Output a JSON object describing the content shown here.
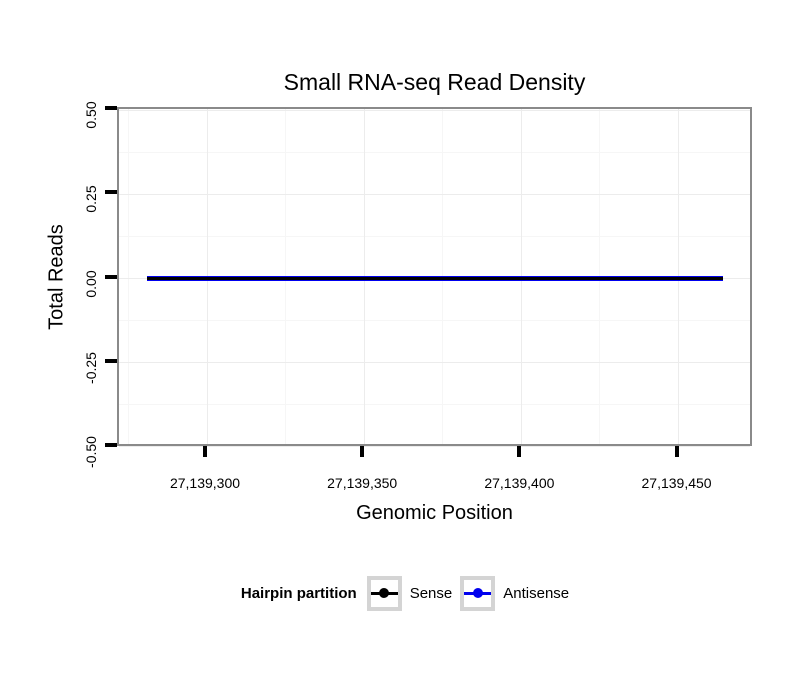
{
  "colors": {
    "background": "#ffffff",
    "panel_border": "#8a8a8a",
    "tick": "#000000",
    "text": "#000000",
    "legend_key_border": "#d4d4d4"
  },
  "chart_data": {
    "type": "line",
    "title": "Small RNA-seq Read Density",
    "xlabel": "Genomic Position",
    "ylabel": "Total Reads",
    "xlim": [
      27139272,
      27139474
    ],
    "ylim": [
      -0.5035,
      0.5035
    ],
    "x_ticks": [
      {
        "value": 27139300,
        "label": "27,139,300"
      },
      {
        "value": 27139350,
        "label": "27,139,350"
      },
      {
        "value": 27139400,
        "label": "27,139,400"
      },
      {
        "value": 27139450,
        "label": "27,139,450"
      }
    ],
    "y_ticks": [
      {
        "value": 0.5,
        "label": "0.50"
      },
      {
        "value": 0.25,
        "label": "0.25"
      },
      {
        "value": 0,
        "label": "0.00"
      },
      {
        "value": -0.25,
        "label": "-0.25"
      },
      {
        "value": -0.5,
        "label": "-0.50"
      }
    ],
    "grid": {
      "major": "#ececec",
      "minor": "#f6f6f6",
      "shown": true
    },
    "series": [
      {
        "name": "Sense",
        "color": "#000000",
        "y": 0,
        "x_start": 27139281,
        "x_end": 27139464
      },
      {
        "name": "Antisense",
        "color": "#0000EE",
        "y": 0,
        "x_start": 27139281,
        "x_end": 27139464
      }
    ],
    "legend": {
      "title": "Hairpin partition",
      "position": "bottom",
      "entries": [
        {
          "label": "Sense",
          "color": "#000000"
        },
        {
          "label": "Antisense",
          "color": "#0000EE"
        }
      ]
    }
  }
}
